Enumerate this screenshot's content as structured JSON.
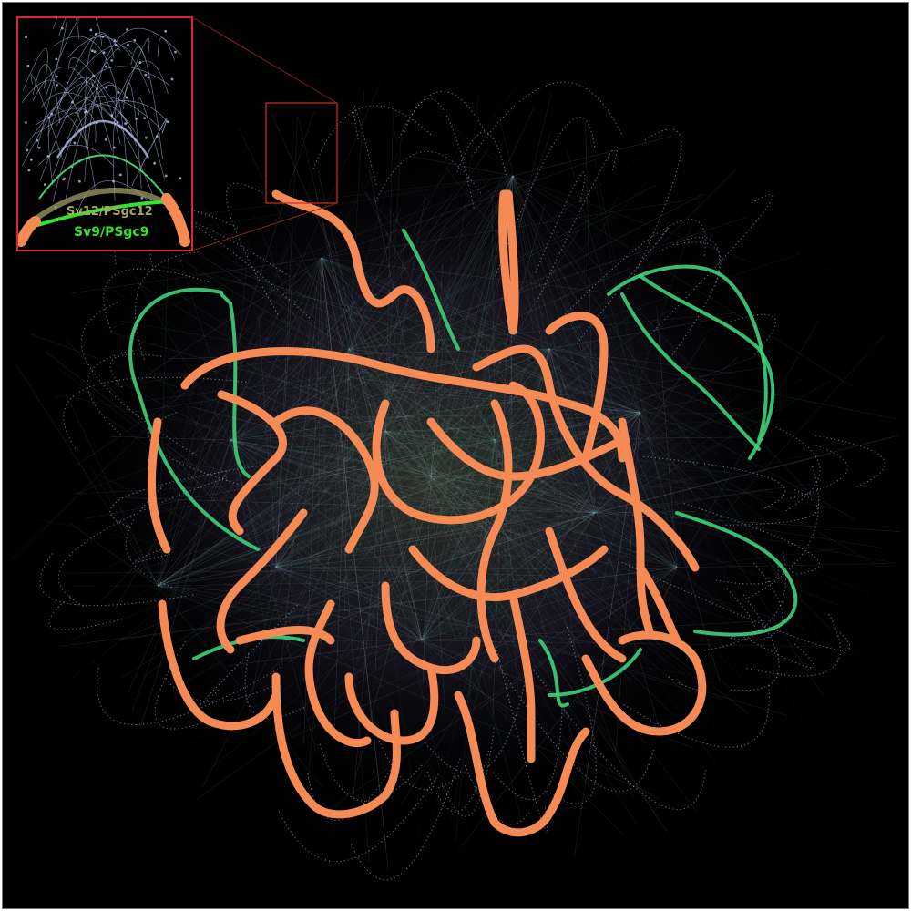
{
  "figure": {
    "type": "graph-network-visualization",
    "background_color": "#000000",
    "colors": {
      "main_path": "#f58a55",
      "secondary_path": "#3fd07a",
      "background_edges": "#b9c3ee",
      "highlight_box": "#d42a2a"
    }
  },
  "inset": {
    "labels": {
      "upper": "Sv12/PSgc12",
      "lower": "Sv9/PSgc9"
    },
    "label_colors": {
      "upper": "#a8a86e",
      "lower": "#34e32a"
    }
  }
}
